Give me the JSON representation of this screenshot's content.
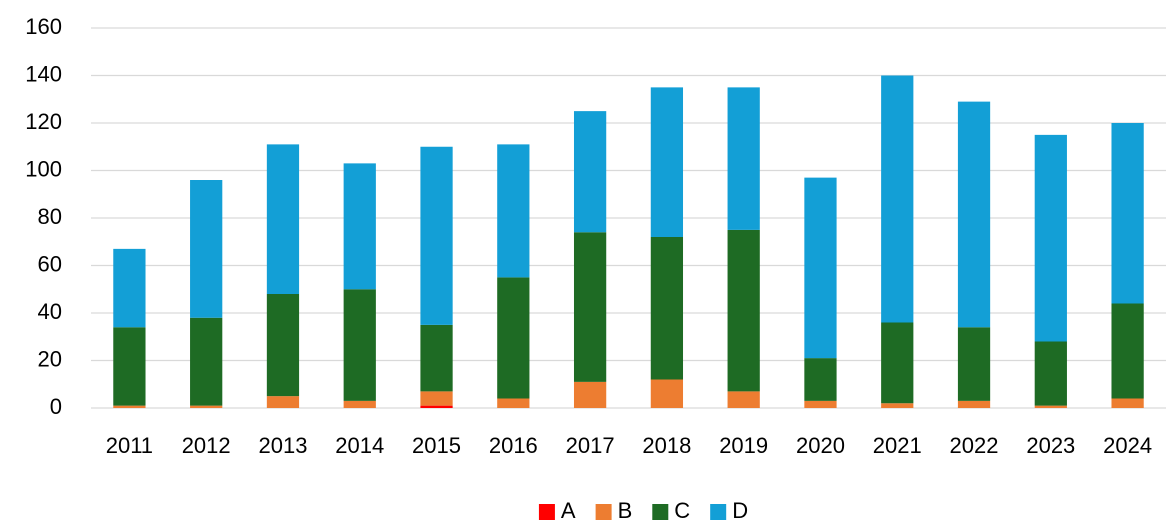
{
  "chart_data": {
    "type": "stacked_bar",
    "categories": [
      "2011",
      "2012",
      "2013",
      "2014",
      "2015",
      "2016",
      "2017",
      "2018",
      "2019",
      "2020",
      "2021",
      "2022",
      "2023",
      "2024"
    ],
    "series": [
      {
        "name": "A",
        "color": "#ff0000",
        "values": [
          0,
          0,
          0,
          0,
          1,
          0,
          0,
          0,
          0,
          0,
          0,
          0,
          0,
          0
        ]
      },
      {
        "name": "B",
        "color": "#ed7d31",
        "values": [
          1,
          1,
          5,
          3,
          6,
          4,
          11,
          12,
          7,
          3,
          2,
          3,
          1,
          4
        ]
      },
      {
        "name": "C",
        "color": "#1e6b24",
        "values": [
          33,
          37,
          43,
          47,
          28,
          51,
          63,
          60,
          68,
          18,
          34,
          31,
          27,
          40
        ]
      },
      {
        "name": "D",
        "color": "#139fd6",
        "values": [
          33,
          58,
          63,
          53,
          75,
          56,
          51,
          63,
          60,
          76,
          104,
          95,
          87,
          76
        ]
      }
    ],
    "ylim": [
      0,
      160
    ],
    "yticks": [
      0,
      20,
      40,
      60,
      80,
      100,
      120,
      140,
      160
    ],
    "grid": true,
    "legend": "bottom"
  }
}
